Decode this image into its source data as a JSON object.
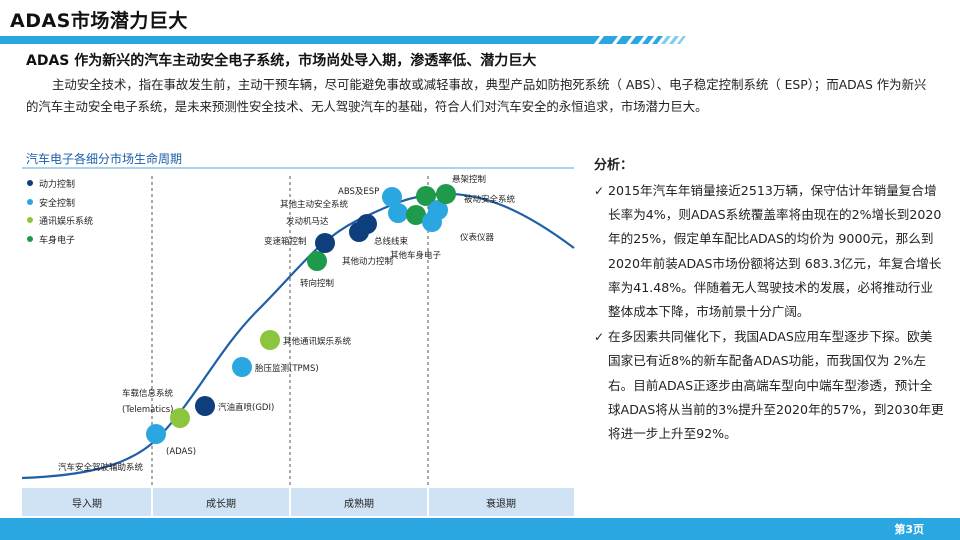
{
  "slide": {
    "title": "ADAS市场潜力巨大",
    "headline": "ADAS 作为新兴的汽车主动安全电子系统，市场尚处导入期，渗透率低、潜力巨大",
    "intro": "主动安全技术，指在事故发生前，主动干预车辆，尽可能避免事故或减轻事故，典型产品如防抱死系统（  ABS）、电子稳定控制系统（  ESP）；而ADAS 作为新兴的汽车主动安全电子系统，是未来预测性安全技术、无人驾驶汽车的基础，符合人们对汽车安全的永恒追求，市场潜力巨大。",
    "page_number": "第3页"
  },
  "diagram": {
    "title": "汽车电子各细分市场生命周期",
    "legend": [
      {
        "label": "动力控制",
        "color": "#0f3e7c"
      },
      {
        "label": "安全控制",
        "color": "#2aa6e0"
      },
      {
        "label": "通讯娱乐系统",
        "color": "#8cc63f"
      },
      {
        "label": "车身电子",
        "color": "#1f9a4a"
      }
    ],
    "phases": [
      "导入期",
      "成长期",
      "成熟期",
      "衰退期"
    ],
    "items": [
      {
        "label": "汽车安全驾驶辅助系统",
        "color": "#2aa6e0"
      },
      {
        "label": "(ADAS)",
        "color": "#8cc63f"
      },
      {
        "label": "车载信息系统",
        "color": "#8cc63f"
      },
      {
        "label": "(Telematics)",
        "color": ""
      },
      {
        "label": "汽油直喷(GDI)",
        "color": "#0f3e7c"
      },
      {
        "label": "胎压监测(TPMS)",
        "color": "#2aa6e0"
      },
      {
        "label": "其他通讯娱乐系统",
        "color": "#8cc63f"
      },
      {
        "label": "转向控制",
        "color": "#1f9a4a"
      },
      {
        "label": "变速箱控制",
        "color": "#0f3e7c"
      },
      {
        "label": "其他主动安全系统",
        "color": "#2aa6e0"
      },
      {
        "label": "发动机马达",
        "color": "#0f3e7c"
      },
      {
        "label": "其他动力控制",
        "color": "#0f3e7c"
      },
      {
        "label": "ABS及ESP",
        "color": "#2aa6e0"
      },
      {
        "label": "总线线束",
        "color": "#2aa6e0"
      },
      {
        "label": "其他车身电子",
        "color": "#1f9a4a"
      },
      {
        "label": "悬架控制",
        "color": "#1f9a4a"
      },
      {
        "label": "被动安全系统",
        "color": "#2aa6e0"
      },
      {
        "label": "仪表仪器",
        "color": "#2aa6e0"
      }
    ]
  },
  "analysis": {
    "title": "分析：",
    "bullets": [
      "2015年汽车年销量接近2513万辆，保守估计年销量复合增长率为4%，则ADAS系统覆盖率将由现在的2%增长到2020年的25%，假定单车配比ADAS的均价为  9000元，那么到2020年前装ADAS市场份额将达到  683.3亿元，年复合增长率为41.48%。伴随着无人驾驶技术的发展，必将推动行业整体成本下降，市场前景十分广阔。",
      "在多因素共同催化下，我国ADAS应用车型逐步下探。欧美国家已有近8%的新车配备ADAS功能，而我国仅为 2%左右。目前ADAS正逐步由高端车型向中端车型渗透，预计全球ADAS将从当前的3%提升至2020年的57%，到2030年更将进一步上升至92%。"
    ]
  }
}
